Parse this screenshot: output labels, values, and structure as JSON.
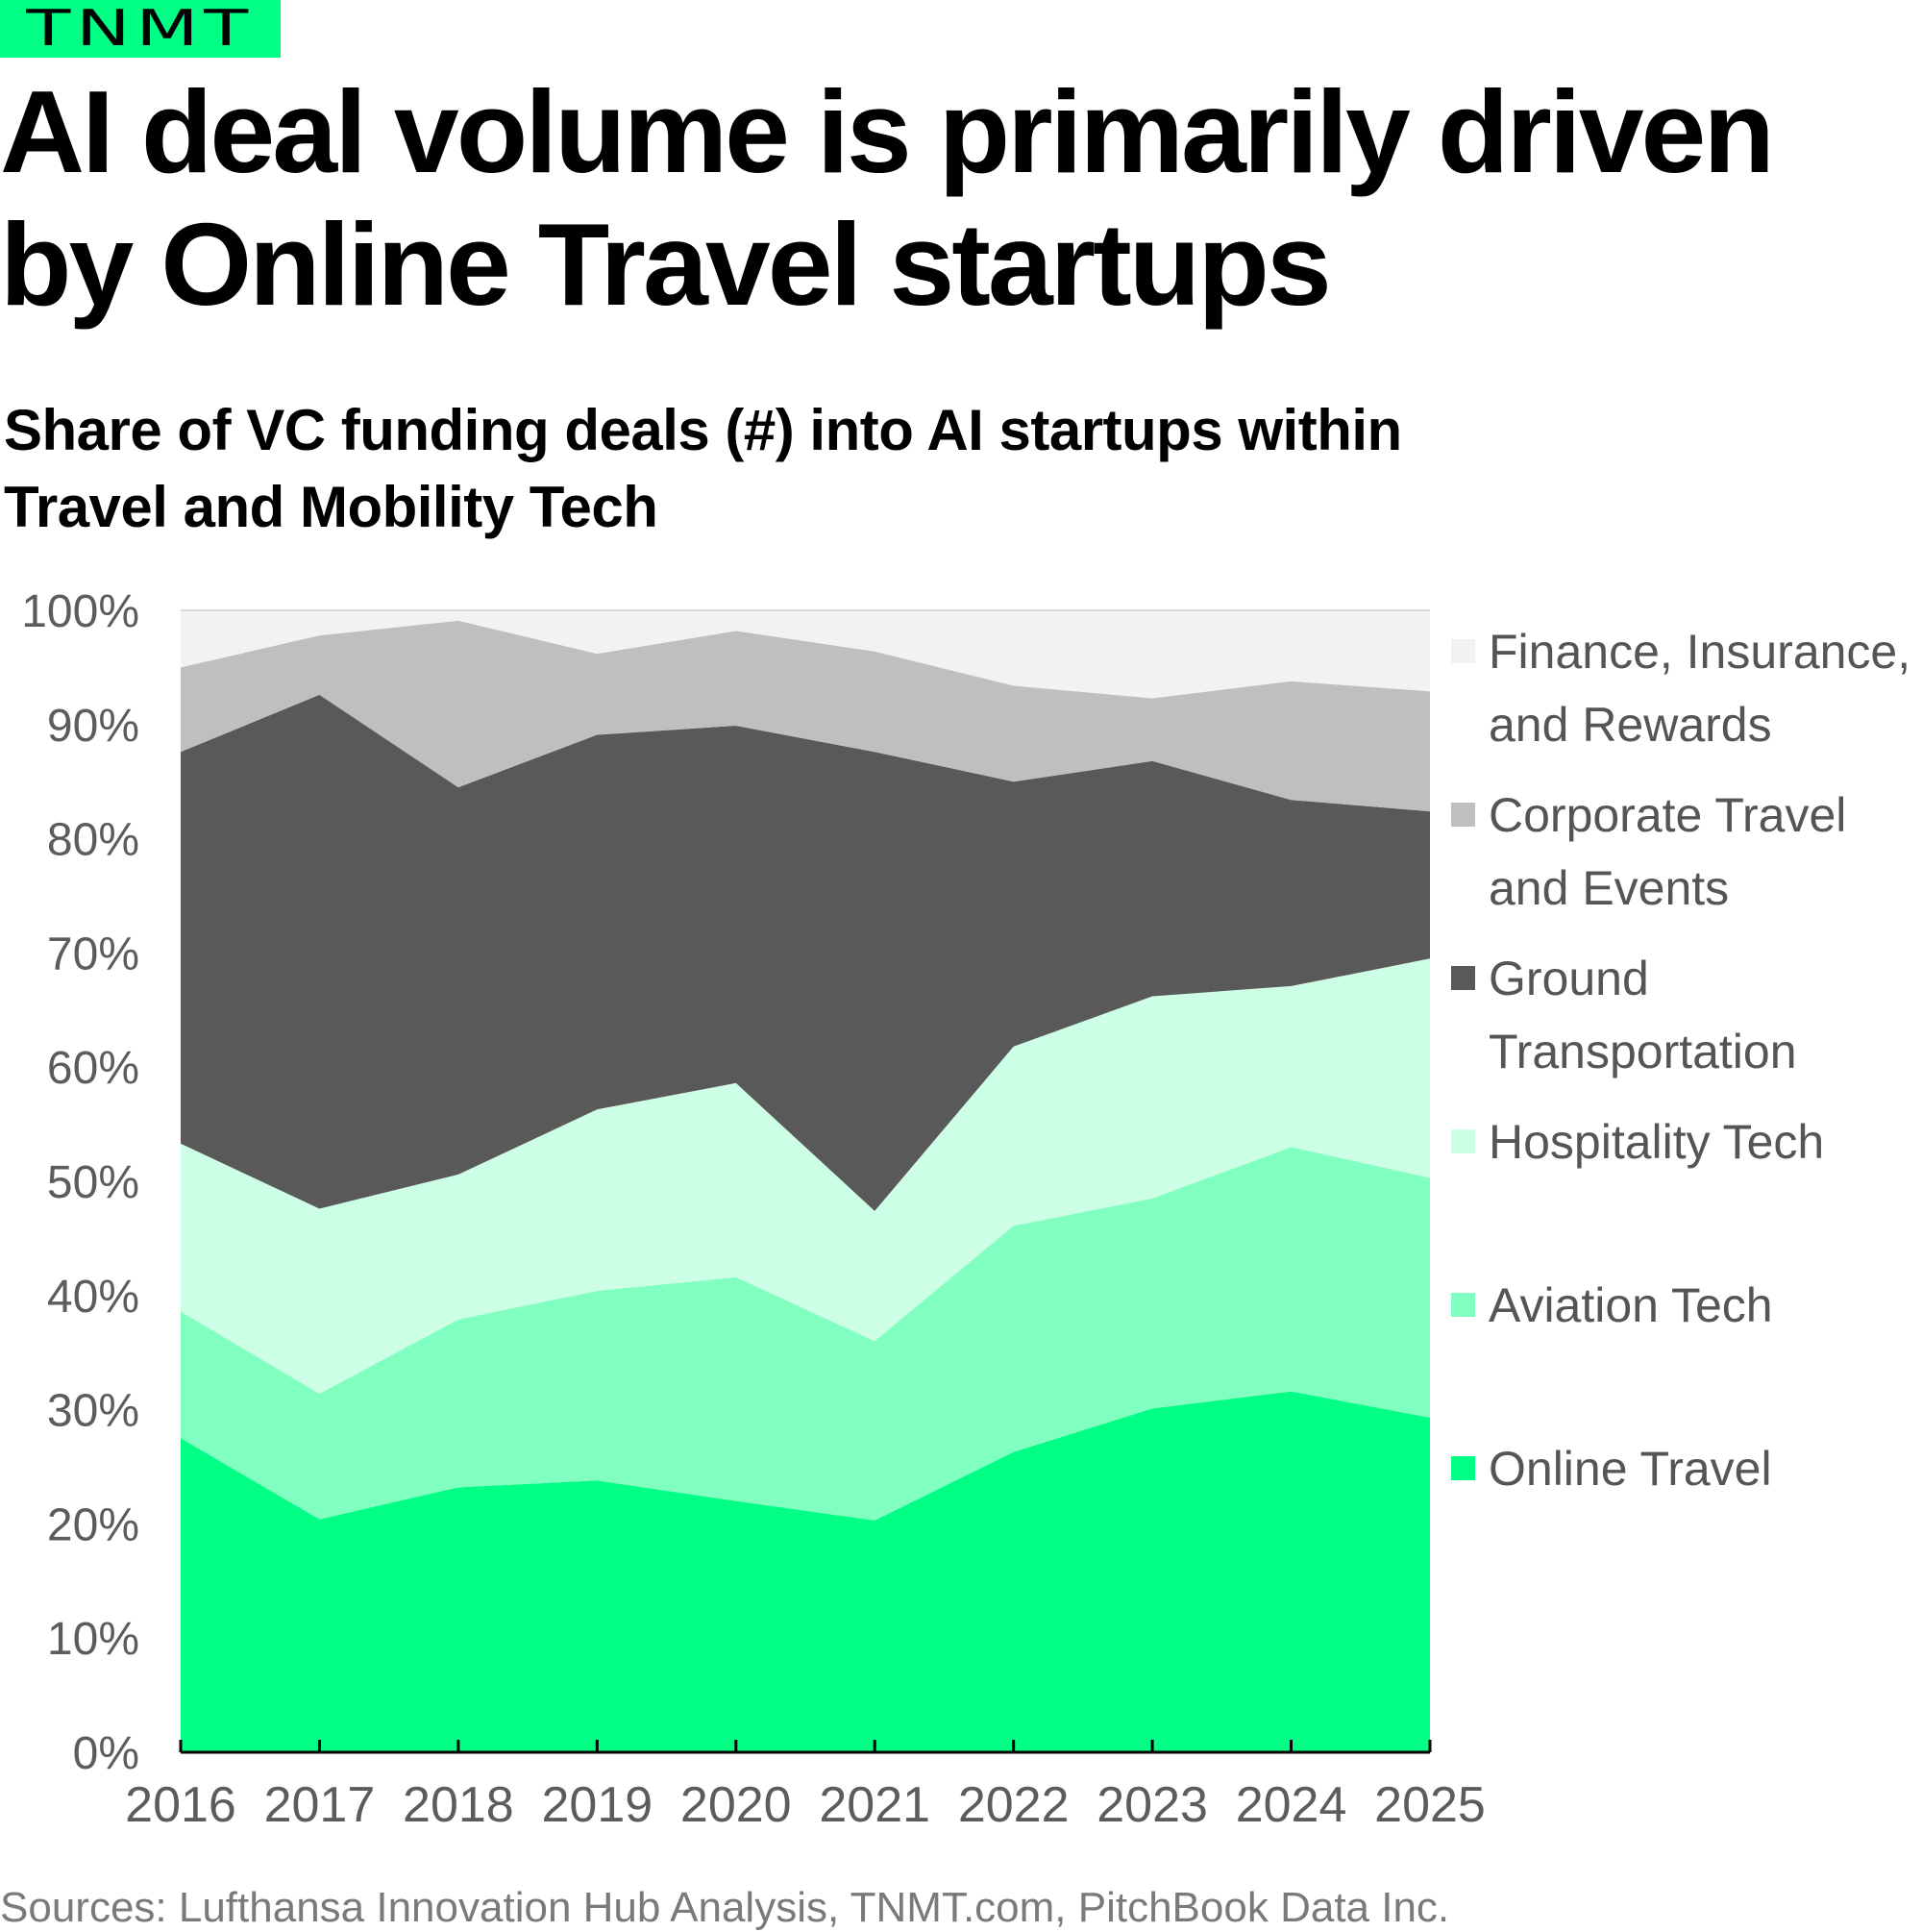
{
  "brand": {
    "logo_text": "TNMT",
    "accent_color": "#00ff84"
  },
  "header": {
    "title_lines": [
      "AI deal volume is primarily driven",
      "by Online Travel startups"
    ],
    "subtitle_lines": [
      "Share of VC funding deals (#) into AI startups within",
      "Travel and Mobility Tech"
    ]
  },
  "footer": {
    "source": "Sources: Lufthansa Innovation Hub Analysis, TNMT.com, PitchBook Data Inc."
  },
  "chart_data": {
    "type": "area",
    "stacked": true,
    "normalized": true,
    "title": "Share of VC funding deals (#) into AI startups within Travel and Mobility Tech",
    "xlabel": "",
    "ylabel": "",
    "x": [
      "2016",
      "2017",
      "2018",
      "2019",
      "2020",
      "2021",
      "2022",
      "2023",
      "2024",
      "2025"
    ],
    "ylim": [
      0,
      100
    ],
    "yticks": [
      "0%",
      "10%",
      "20%",
      "30%",
      "40%",
      "50%",
      "60%",
      "70%",
      "80%",
      "90%",
      "100%"
    ],
    "grid": false,
    "legend_position": "right",
    "series": [
      {
        "name": "Online Travel",
        "color": "#00ff84",
        "values": [
          27.5,
          20.4,
          23.2,
          23.8,
          22.0,
          20.3,
          26.3,
          30.1,
          31.6,
          29.3
        ]
      },
      {
        "name": "Aviation Tech",
        "color": "#80ffc0",
        "values": [
          11.1,
          11.0,
          14.7,
          16.6,
          19.6,
          15.7,
          19.8,
          18.4,
          21.4,
          21.0
        ]
      },
      {
        "name": "Hospitality Tech",
        "color": "#ccffe5",
        "values": [
          14.7,
          16.2,
          12.7,
          15.9,
          17.0,
          11.4,
          15.7,
          17.7,
          14.1,
          19.2
        ]
      },
      {
        "name": "Ground Transportation",
        "color": "#595959",
        "values": [
          34.3,
          45.0,
          33.9,
          32.8,
          31.3,
          40.2,
          23.2,
          20.6,
          16.3,
          12.9
        ]
      },
      {
        "name": "Corporate Travel and Events",
        "color": "#bfbfbf",
        "values": [
          7.4,
          5.2,
          14.6,
          7.1,
          8.3,
          8.8,
          8.4,
          5.5,
          10.4,
          10.5
        ]
      },
      {
        "name": "Finance, Insurance, and Rewards",
        "color": "#f2f2f2",
        "values": [
          5.0,
          2.2,
          0.9,
          3.8,
          1.8,
          3.6,
          6.6,
          7.7,
          6.2,
          7.1
        ]
      }
    ]
  },
  "legend": {
    "items": [
      {
        "label_lines": [
          "Finance, Insurance,",
          "and Rewards"
        ],
        "color": "#f2f2f2"
      },
      {
        "label_lines": [
          "Corporate Travel",
          "and Events"
        ],
        "color": "#bfbfbf"
      },
      {
        "label_lines": [
          "Ground",
          "Transportation"
        ],
        "color": "#595959"
      },
      {
        "label_lines": [
          "Hospitality Tech"
        ],
        "color": "#ccffe5"
      },
      {
        "label_lines": [
          "Aviation Tech"
        ],
        "color": "#80ffc0"
      },
      {
        "label_lines": [
          "Online Travel"
        ],
        "color": "#00ff84"
      }
    ]
  }
}
